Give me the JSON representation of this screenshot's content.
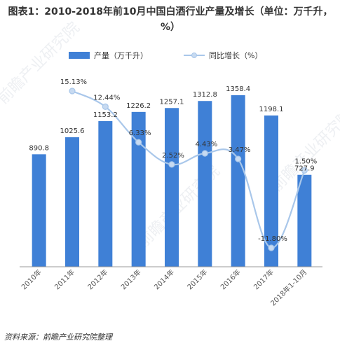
{
  "title": "图表1：2010-2018年前10月中国白酒行业产量及增长（单位：万千升，%）",
  "source": "资料来源：前瞻产业研究院整理",
  "watermark": "前瞻产业研究院",
  "colors": {
    "bar": "#3f80d6",
    "line": "#a9c7ea",
    "point": "#c7daf1",
    "text": "#333333",
    "axis": "#999999"
  },
  "chart_data": {
    "type": "bar",
    "categories": [
      "2010年",
      "2011年",
      "2012年",
      "2013年",
      "2014年",
      "2015年",
      "2016年",
      "2017年",
      "2018年1-10月"
    ],
    "series": [
      {
        "name": "产量（万千升）",
        "type": "bar",
        "values": [
          890.8,
          1025.6,
          1153.2,
          1226.2,
          1257.1,
          1312.8,
          1358.4,
          1198.1,
          727.9
        ],
        "labels": [
          "890.8",
          "1025.6",
          "1153.2",
          "1226.2",
          "1257.1",
          "1312.8",
          "1358.4",
          "1198.1",
          "727.9"
        ]
      },
      {
        "name": "同比增长（%）",
        "type": "line",
        "values": [
          null,
          15.13,
          12.44,
          6.33,
          2.52,
          4.43,
          3.47,
          -11.8,
          1.5
        ],
        "labels": [
          "",
          "15.13%",
          "12.44%",
          "6.33%",
          "2.52%",
          "4.43%",
          "3.47%",
          "-11.80%",
          "1.50%"
        ]
      }
    ],
    "legend": "top",
    "grid": false
  }
}
